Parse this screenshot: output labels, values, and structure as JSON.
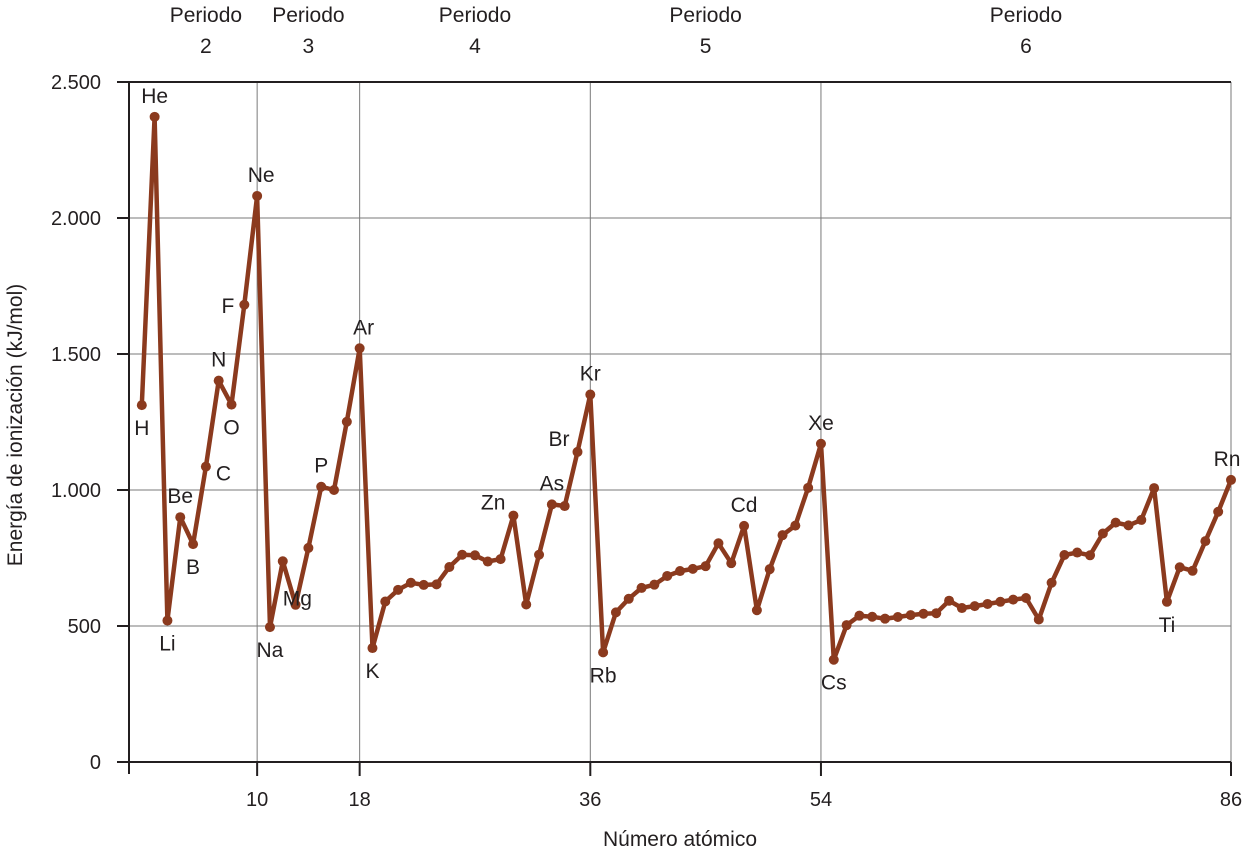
{
  "chart_data": {
    "type": "line",
    "title": "",
    "xlabel": "Número atómico",
    "ylabel": "Energía de ionización (kJ/mol)",
    "xlim": [
      0,
      86
    ],
    "ylim": [
      0,
      2500
    ],
    "x_ticks": [
      {
        "value": 10,
        "label": "10"
      },
      {
        "value": 18,
        "label": "18"
      },
      {
        "value": 36,
        "label": "36"
      },
      {
        "value": 54,
        "label": "54"
      },
      {
        "value": 86,
        "label": "86"
      }
    ],
    "y_ticks": [
      {
        "value": 0,
        "label": "0"
      },
      {
        "value": 500,
        "label": "500"
      },
      {
        "value": 1000,
        "label": "1.000"
      },
      {
        "value": 1500,
        "label": "1.500"
      },
      {
        "value": 2000,
        "label": "2.000"
      },
      {
        "value": 2500,
        "label": "2.500"
      }
    ],
    "grid": true,
    "series_color": "#8b3a1e",
    "periods": [
      {
        "title": "Periodo",
        "number": "2",
        "x_start": 2,
        "x_end": 10
      },
      {
        "title": "Periodo",
        "number": "3",
        "x_start": 10,
        "x_end": 18
      },
      {
        "title": "Periodo",
        "number": "4",
        "x_start": 18,
        "x_end": 36
      },
      {
        "title": "Periodo",
        "number": "5",
        "x_start": 36,
        "x_end": 54
      },
      {
        "title": "Periodo",
        "number": "6",
        "x_start": 54,
        "x_end": 86
      }
    ],
    "x": [
      1,
      2,
      3,
      4,
      5,
      6,
      7,
      8,
      9,
      10,
      11,
      12,
      13,
      14,
      15,
      16,
      17,
      18,
      19,
      20,
      21,
      22,
      23,
      24,
      25,
      26,
      27,
      28,
      29,
      30,
      31,
      32,
      33,
      34,
      35,
      36,
      37,
      38,
      39,
      40,
      41,
      42,
      43,
      44,
      45,
      46,
      47,
      48,
      49,
      50,
      51,
      52,
      53,
      54,
      55,
      56,
      57,
      58,
      59,
      60,
      61,
      62,
      63,
      64,
      65,
      66,
      67,
      68,
      69,
      70,
      71,
      72,
      73,
      74,
      75,
      76,
      77,
      78,
      79,
      80,
      81,
      82,
      83,
      84,
      85,
      86
    ],
    "y": [
      1312,
      2372,
      520,
      900,
      801,
      1086,
      1402,
      1314,
      1681,
      2081,
      496,
      738,
      578,
      787,
      1012,
      1000,
      1251,
      1521,
      419,
      590,
      633,
      659,
      651,
      653,
      717,
      762,
      760,
      737,
      746,
      906,
      579,
      762,
      947,
      941,
      1140,
      1351,
      403,
      550,
      600,
      640,
      652,
      684,
      702,
      710,
      720,
      804,
      731,
      868,
      558,
      709,
      834,
      869,
      1008,
      1170,
      376,
      503,
      538,
      534,
      527,
      533,
      540,
      545,
      547,
      593,
      566,
      573,
      581,
      589,
      597,
      603,
      524,
      659,
      761,
      770,
      760,
      840,
      880,
      870,
      890,
      1007,
      589,
      716,
      703,
      812,
      920,
      1037
    ],
    "point_labels": [
      {
        "x": 1,
        "text": "H",
        "pos": "below"
      },
      {
        "x": 2,
        "text": "He",
        "pos": "above"
      },
      {
        "x": 3,
        "text": "Li",
        "pos": "below"
      },
      {
        "x": 4,
        "text": "Be",
        "pos": "above"
      },
      {
        "x": 5,
        "text": "B",
        "pos": "below"
      },
      {
        "x": 6,
        "text": "C",
        "pos": "right-below"
      },
      {
        "x": 7,
        "text": "N",
        "pos": "above"
      },
      {
        "x": 8,
        "text": "O",
        "pos": "below"
      },
      {
        "x": 9,
        "text": "F",
        "pos": "left"
      },
      {
        "x": 10,
        "text": "Ne",
        "pos": "above-right"
      },
      {
        "x": 11,
        "text": "Na",
        "pos": "below"
      },
      {
        "x": 12,
        "text": "Mg",
        "pos": "mg"
      },
      {
        "x": 15,
        "text": "P",
        "pos": "above"
      },
      {
        "x": 18,
        "text": "Ar",
        "pos": "above-right"
      },
      {
        "x": 19,
        "text": "K",
        "pos": "below"
      },
      {
        "x": 30,
        "text": "Zn",
        "pos": "left-above"
      },
      {
        "x": 33,
        "text": "As",
        "pos": "above"
      },
      {
        "x": 35,
        "text": "Br",
        "pos": "left-above"
      },
      {
        "x": 36,
        "text": "Kr",
        "pos": "above"
      },
      {
        "x": 37,
        "text": "Rb",
        "pos": "below"
      },
      {
        "x": 48,
        "text": "Cd",
        "pos": "above"
      },
      {
        "x": 54,
        "text": "Xe",
        "pos": "above"
      },
      {
        "x": 55,
        "text": "Cs",
        "pos": "below"
      },
      {
        "x": 81,
        "text": "Ti",
        "pos": "below"
      },
      {
        "x": 86,
        "text": "Rn",
        "pos": "above-left"
      }
    ]
  }
}
